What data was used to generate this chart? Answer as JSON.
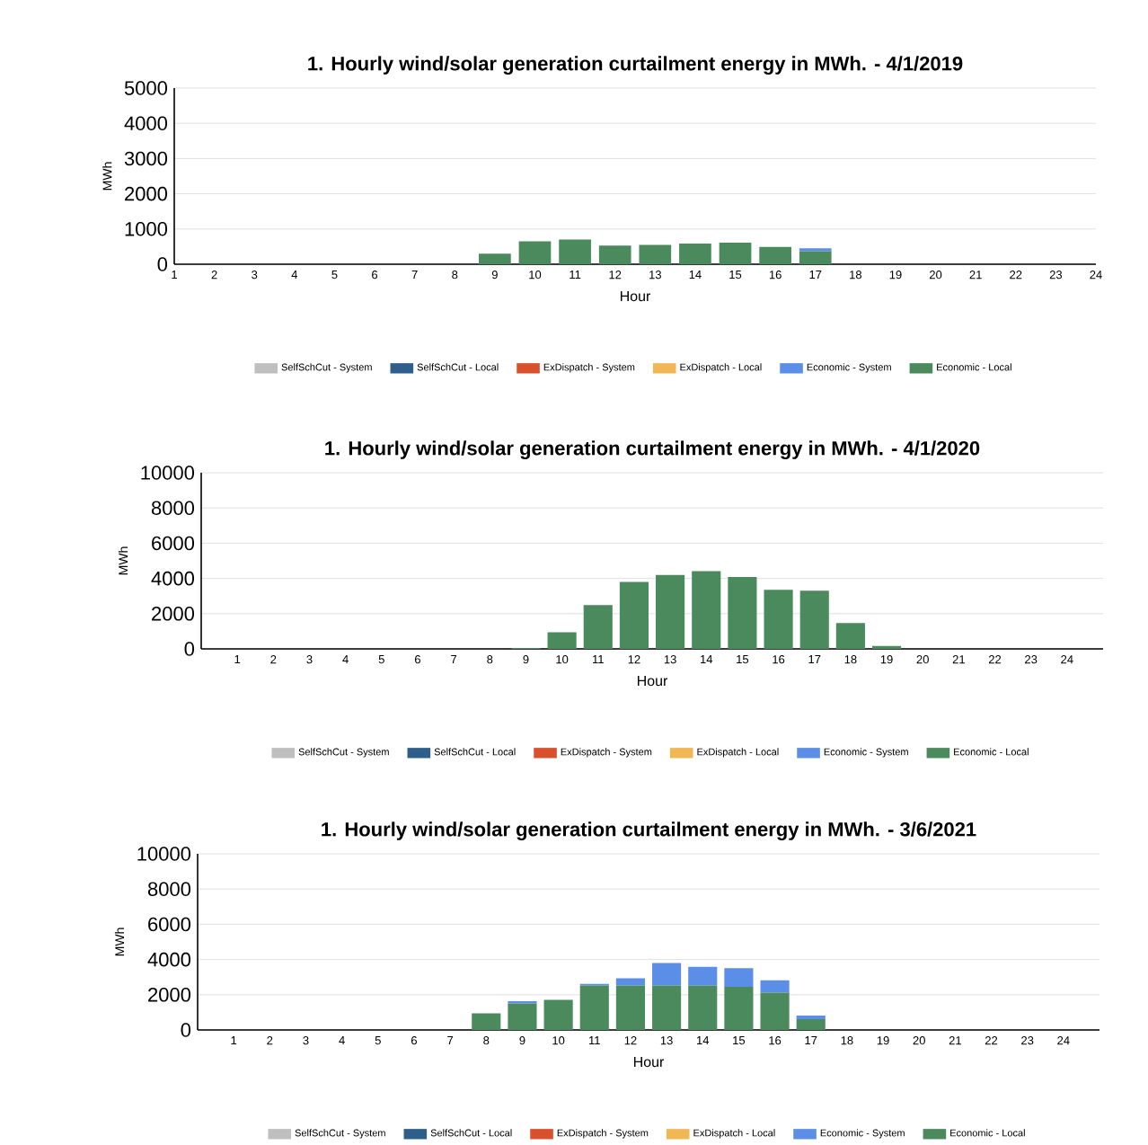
{
  "chart_data": [
    {
      "type": "bar",
      "stacked": true,
      "title": "1.    Hourly wind/solar generation curtailment energy in MWh. - 4/1/2019",
      "xlabel": "Hour",
      "ylabel": "MWh",
      "x": [
        1,
        2,
        3,
        4,
        5,
        6,
        7,
        8,
        9,
        10,
        11,
        12,
        13,
        14,
        15,
        16,
        17,
        18,
        19,
        20,
        21,
        22,
        23,
        24
      ],
      "xlim": [
        1,
        24
      ],
      "xticks": [
        1,
        2,
        3,
        4,
        5,
        6,
        7,
        8,
        9,
        10,
        11,
        12,
        13,
        14,
        15,
        16,
        17,
        18,
        19,
        20,
        21,
        22,
        23,
        24
      ],
      "ylim": [
        0,
        5000
      ],
      "yticks": [
        0,
        1000,
        2000,
        3000,
        4000,
        5000
      ],
      "grid": "y",
      "legend": "bottom",
      "series": [
        {
          "name": "Economic - Local",
          "color": "#4a8a5c",
          "values": [
            0,
            0,
            0,
            0,
            0,
            0,
            0,
            0,
            300,
            650,
            700,
            530,
            550,
            590,
            610,
            490,
            370,
            0,
            0,
            0,
            0,
            0,
            0,
            0
          ]
        },
        {
          "name": "Economic - System",
          "color": "#5b8ee6",
          "values": [
            0,
            0,
            0,
            0,
            0,
            0,
            0,
            0,
            0,
            0,
            0,
            0,
            0,
            0,
            0,
            0,
            80,
            0,
            0,
            0,
            0,
            0,
            0,
            0
          ]
        },
        {
          "name": "ExDispatch - Local",
          "color": "#f2b755",
          "values": [
            0,
            0,
            0,
            0,
            0,
            0,
            0,
            0,
            0,
            0,
            0,
            0,
            0,
            0,
            0,
            0,
            0,
            0,
            0,
            0,
            0,
            0,
            0,
            0
          ]
        },
        {
          "name": "ExDispatch - System",
          "color": "#d9512c",
          "values": [
            0,
            0,
            0,
            0,
            0,
            0,
            0,
            0,
            0,
            0,
            0,
            0,
            0,
            0,
            0,
            0,
            0,
            0,
            0,
            0,
            0,
            0,
            0,
            0
          ]
        },
        {
          "name": "SelfSchCut - Local",
          "color": "#2e5f8a",
          "values": [
            0,
            0,
            0,
            0,
            0,
            0,
            0,
            0,
            0,
            0,
            0,
            0,
            0,
            0,
            0,
            0,
            0,
            0,
            0,
            0,
            0,
            0,
            0,
            0
          ]
        },
        {
          "name": "SelfSchCut - System",
          "color": "#bfbfbf",
          "values": [
            0,
            0,
            0,
            0,
            0,
            0,
            0,
            0,
            0,
            0,
            0,
            0,
            0,
            0,
            0,
            0,
            0,
            0,
            0,
            0,
            0,
            0,
            0,
            0
          ]
        }
      ]
    },
    {
      "type": "bar",
      "stacked": true,
      "title": "1.    Hourly wind/solar generation curtailment energy in MWh. - 4/1/2020",
      "xlabel": "Hour",
      "ylabel": "MWh",
      "categories": [
        "1",
        "2",
        "3",
        "4",
        "5",
        "6",
        "7",
        "8",
        "9",
        "10",
        "11",
        "12",
        "13",
        "14",
        "15",
        "16",
        "17",
        "18",
        "19",
        "20",
        "21",
        "22",
        "23",
        "24"
      ],
      "ylim": [
        0,
        10000
      ],
      "yticks": [
        0,
        2000,
        4000,
        6000,
        8000,
        10000
      ],
      "grid": "y",
      "legend": "bottom",
      "series": [
        {
          "name": "Economic - Local",
          "color": "#4a8a5c",
          "values": [
            0,
            0,
            0,
            0,
            0,
            0,
            0,
            0,
            50,
            940,
            2490,
            3800,
            4200,
            4410,
            4080,
            3350,
            3310,
            1470,
            160,
            0,
            0,
            0,
            0,
            0
          ]
        },
        {
          "name": "Economic - System",
          "color": "#5b8ee6",
          "values": [
            0,
            0,
            0,
            0,
            0,
            0,
            0,
            0,
            0,
            0,
            0,
            0,
            0,
            0,
            0,
            0,
            0,
            0,
            0,
            0,
            0,
            0,
            0,
            0
          ]
        },
        {
          "name": "ExDispatch - Local",
          "color": "#f2b755",
          "values": [
            0,
            0,
            0,
            0,
            0,
            0,
            0,
            0,
            0,
            0,
            0,
            0,
            0,
            0,
            0,
            0,
            0,
            0,
            0,
            0,
            0,
            0,
            0,
            0
          ]
        },
        {
          "name": "ExDispatch - System",
          "color": "#d9512c",
          "values": [
            0,
            0,
            0,
            0,
            0,
            0,
            0,
            0,
            0,
            0,
            0,
            0,
            0,
            0,
            0,
            0,
            0,
            0,
            0,
            0,
            0,
            0,
            0,
            0
          ]
        },
        {
          "name": "SelfSchCut - Local",
          "color": "#2e5f8a",
          "values": [
            0,
            0,
            0,
            0,
            0,
            0,
            0,
            0,
            0,
            0,
            0,
            0,
            0,
            0,
            0,
            0,
            0,
            0,
            0,
            0,
            0,
            0,
            0,
            0
          ]
        },
        {
          "name": "SelfSchCut - System",
          "color": "#bfbfbf",
          "values": [
            0,
            0,
            0,
            0,
            0,
            0,
            0,
            0,
            0,
            0,
            0,
            0,
            0,
            0,
            0,
            0,
            0,
            0,
            0,
            0,
            0,
            0,
            0,
            0
          ]
        }
      ]
    },
    {
      "type": "bar",
      "stacked": true,
      "title": "1.    Hourly wind/solar generation curtailment energy in MWh. - 3/6/2021",
      "xlabel": "Hour",
      "ylabel": "MWh",
      "categories": [
        "1",
        "2",
        "3",
        "4",
        "5",
        "6",
        "7",
        "8",
        "9",
        "10",
        "11",
        "12",
        "13",
        "14",
        "15",
        "16",
        "17",
        "18",
        "19",
        "20",
        "21",
        "22",
        "23",
        "24"
      ],
      "ylim": [
        0,
        10000
      ],
      "yticks": [
        0,
        2000,
        4000,
        6000,
        8000,
        10000
      ],
      "grid": "y",
      "legend": "bottom",
      "series": [
        {
          "name": "Economic - Local",
          "color": "#4a8a5c",
          "values": [
            0,
            0,
            0,
            0,
            0,
            0,
            0,
            940,
            1510,
            1710,
            2530,
            2530,
            2530,
            2530,
            2450,
            2120,
            610,
            0,
            0,
            0,
            0,
            0,
            0,
            0
          ]
        },
        {
          "name": "Economic - System",
          "color": "#5b8ee6",
          "values": [
            0,
            0,
            0,
            0,
            0,
            0,
            0,
            0,
            120,
            0,
            80,
            410,
            1270,
            1060,
            1060,
            700,
            210,
            0,
            0,
            0,
            0,
            0,
            0,
            0
          ]
        },
        {
          "name": "ExDispatch - Local",
          "color": "#f2b755",
          "values": [
            0,
            0,
            0,
            0,
            0,
            0,
            0,
            0,
            0,
            0,
            0,
            0,
            0,
            0,
            0,
            0,
            0,
            0,
            0,
            0,
            0,
            0,
            0,
            0
          ]
        },
        {
          "name": "ExDispatch - System",
          "color": "#d9512c",
          "values": [
            0,
            0,
            0,
            0,
            0,
            0,
            0,
            0,
            0,
            0,
            0,
            0,
            0,
            0,
            0,
            0,
            0,
            0,
            0,
            0,
            0,
            0,
            0,
            0
          ]
        },
        {
          "name": "SelfSchCut - Local",
          "color": "#2e5f8a",
          "values": [
            0,
            0,
            0,
            0,
            0,
            0,
            0,
            0,
            0,
            0,
            0,
            0,
            0,
            0,
            0,
            0,
            0,
            0,
            0,
            0,
            0,
            0,
            0,
            0
          ]
        },
        {
          "name": "SelfSchCut - System",
          "color": "#bfbfbf",
          "values": [
            0,
            0,
            0,
            0,
            0,
            0,
            0,
            0,
            0,
            0,
            0,
            0,
            0,
            0,
            0,
            0,
            0,
            0,
            0,
            0,
            0,
            0,
            0,
            0
          ]
        }
      ]
    }
  ]
}
